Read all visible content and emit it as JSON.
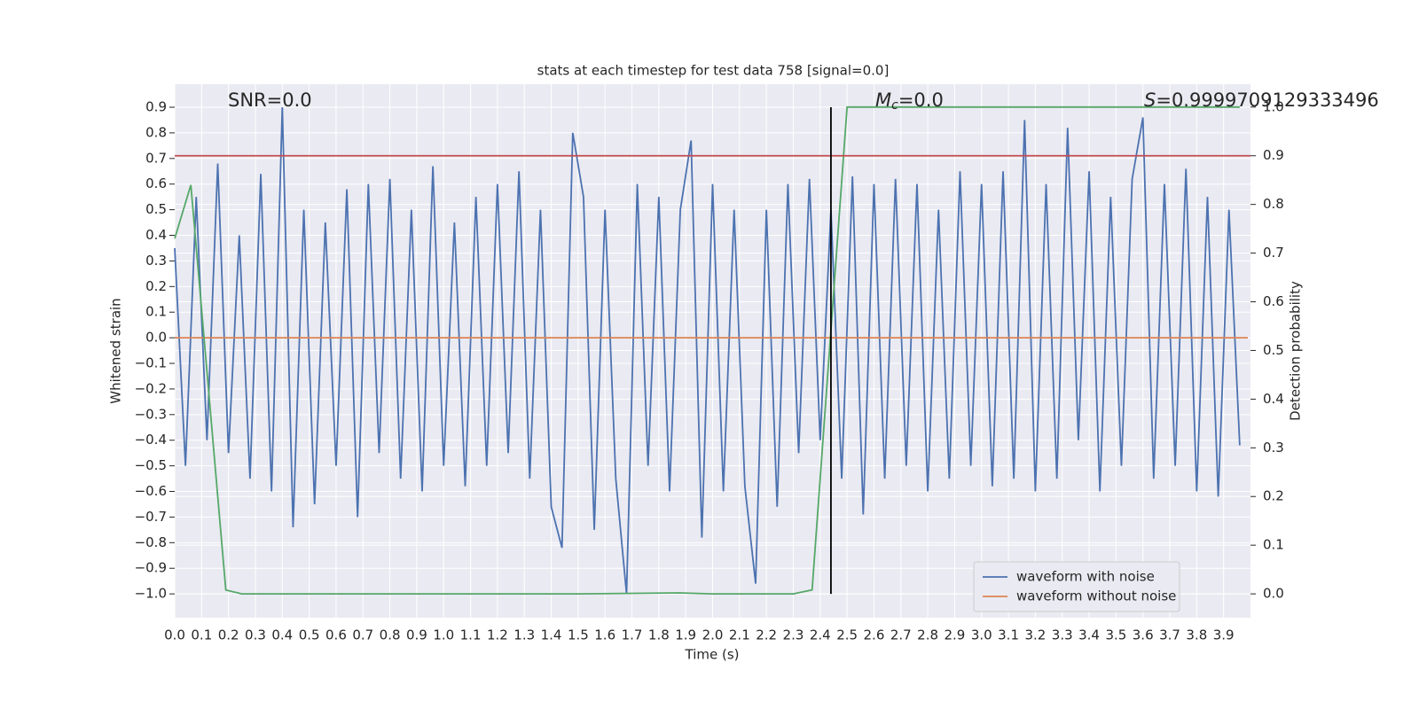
{
  "chart_data": {
    "type": "line",
    "title": "stats at each timestep for test data 758 [signal=0.0]",
    "xlabel": "Time (s)",
    "ylabel": "Whitened strain",
    "y2label": "Detection probability",
    "annotations": [
      {
        "text": "SNR=0.0"
      },
      {
        "symbol": "M",
        "subscript": "c",
        "text": "=0.0"
      },
      {
        "symbol": "S",
        "text": "=0.9999709129333496"
      }
    ],
    "xlim": [
      0,
      4.0
    ],
    "ylim": [
      -1.093,
      0.99
    ],
    "y2lim": [
      -0.049,
      1.047
    ],
    "xticks": [
      {
        "value": 0,
        "label": "0.0"
      },
      0.1,
      0.2,
      0.3,
      0.4,
      0.5,
      0.6,
      0.7,
      0.8,
      0.9,
      {
        "value": 1,
        "label": "1.0"
      },
      1.1,
      1.2,
      1.3,
      1.4,
      1.5,
      1.6,
      1.7,
      1.8,
      1.9,
      {
        "value": 2,
        "label": "2.0"
      },
      2.1,
      2.2,
      2.3,
      2.4,
      2.5,
      2.6,
      2.7,
      2.8,
      2.9,
      {
        "value": 3,
        "label": "3.0"
      },
      3.1,
      3.2,
      3.3,
      3.4,
      3.5,
      3.6,
      3.7,
      3.8,
      3.9
    ],
    "yticks": [
      {
        "value": -1,
        "label": "−1.0"
      },
      {
        "value": -0.9,
        "label": "−0.9"
      },
      {
        "value": -0.8,
        "label": "−0.8"
      },
      {
        "value": -0.7,
        "label": "−0.7"
      },
      {
        "value": -0.6,
        "label": "−0.6"
      },
      {
        "value": -0.5,
        "label": "−0.5"
      },
      {
        "value": -0.4,
        "label": "−0.4"
      },
      {
        "value": -0.3,
        "label": "−0.3"
      },
      {
        "value": -0.2,
        "label": "−0.2"
      },
      {
        "value": -0.1,
        "label": "−0.1"
      },
      {
        "value": 0,
        "label": "0.0"
      },
      0.1,
      0.2,
      0.3,
      0.4,
      0.5,
      0.6,
      0.7,
      0.8,
      0.9
    ],
    "y2ticks": [
      {
        "value": 0,
        "label": "0.0"
      },
      0.1,
      0.2,
      0.3,
      0.4,
      0.5,
      0.6,
      0.7,
      0.8,
      0.9,
      {
        "value": 1,
        "label": "1.0"
      }
    ],
    "grid": true,
    "legend": "lower right",
    "series": [
      {
        "name": "waveform with noise",
        "color": "#4c72b0",
        "x": [
          0,
          0.04,
          0.08,
          0.12,
          0.16,
          0.2,
          0.24,
          0.28,
          0.32,
          0.36,
          0.4,
          0.44,
          0.48,
          0.52,
          0.56,
          0.6,
          0.64,
          0.68,
          0.72,
          0.76,
          0.8,
          0.84,
          0.88,
          0.92,
          0.96,
          1.0,
          1.04,
          1.08,
          1.12,
          1.16,
          1.2,
          1.24,
          1.28,
          1.32,
          1.36,
          1.4,
          1.44,
          1.48,
          1.52,
          1.56,
          1.6,
          1.64,
          1.68,
          1.72,
          1.76,
          1.8,
          1.84,
          1.88,
          1.92,
          1.96,
          2.0,
          2.04,
          2.08,
          2.12,
          2.16,
          2.2,
          2.24,
          2.28,
          2.32,
          2.36,
          2.4,
          2.44,
          2.48,
          2.52,
          2.56,
          2.6,
          2.64,
          2.68,
          2.72,
          2.76,
          2.8,
          2.84,
          2.88,
          2.92,
          2.96,
          3.0,
          3.04,
          3.08,
          3.12,
          3.16,
          3.2,
          3.24,
          3.28,
          3.32,
          3.36,
          3.4,
          3.44,
          3.48,
          3.52,
          3.56,
          3.6,
          3.64,
          3.68,
          3.72,
          3.76,
          3.8,
          3.84,
          3.88,
          3.92,
          3.96
        ],
        "values": [
          0.35,
          -0.5,
          0.55,
          -0.4,
          0.68,
          -0.45,
          0.4,
          -0.55,
          0.64,
          -0.6,
          0.9,
          -0.74,
          0.5,
          -0.65,
          0.45,
          -0.5,
          0.58,
          -0.7,
          0.6,
          -0.45,
          0.62,
          -0.55,
          0.5,
          -0.6,
          0.67,
          -0.5,
          0.45,
          -0.58,
          0.55,
          -0.5,
          0.6,
          -0.45,
          0.65,
          -0.55,
          0.5,
          -0.66,
          -0.82,
          0.8,
          0.55,
          -0.75,
          0.5,
          -0.55,
          -1.0,
          0.6,
          -0.5,
          0.55,
          -0.6,
          0.5,
          0.77,
          -0.78,
          0.6,
          -0.6,
          0.5,
          -0.58,
          -0.96,
          0.5,
          -0.66,
          0.6,
          -0.45,
          0.62,
          -0.4,
          0.5,
          -0.55,
          0.63,
          -0.69,
          0.6,
          -0.55,
          0.62,
          -0.5,
          0.6,
          -0.6,
          0.5,
          -0.55,
          0.65,
          -0.5,
          0.6,
          -0.58,
          0.65,
          -0.55,
          0.85,
          -0.6,
          0.6,
          -0.55,
          0.82,
          -0.4,
          0.65,
          -0.6,
          0.55,
          -0.5,
          0.62,
          0.86,
          -0.55,
          0.6,
          -0.5,
          0.66,
          -0.6,
          0.55,
          -0.62,
          0.5,
          -0.42
        ]
      },
      {
        "name": "waveform without noise",
        "color": "#dd8452",
        "x": [
          0,
          3.99
        ],
        "values": [
          0,
          0
        ]
      },
      {
        "color": "#55a868",
        "axis": "y2",
        "x": [
          0,
          0.06,
          0.19,
          0.25,
          0.5,
          1.0,
          1.5,
          1.88,
          2.0,
          2.3,
          2.37,
          2.5,
          3.0,
          3.96
        ],
        "values": [
          0.73,
          0.84,
          0.008,
          0,
          0,
          0,
          0,
          0.002,
          0,
          0,
          0.008,
          1.0,
          1.0,
          1.0
        ]
      }
    ],
    "threshold": {
      "value": 0.9,
      "axis": "y2",
      "color": "#c44e52"
    },
    "vline": {
      "x": 2.44,
      "ymin": -1.0,
      "ymax": 0.9,
      "color": "#000000"
    }
  }
}
